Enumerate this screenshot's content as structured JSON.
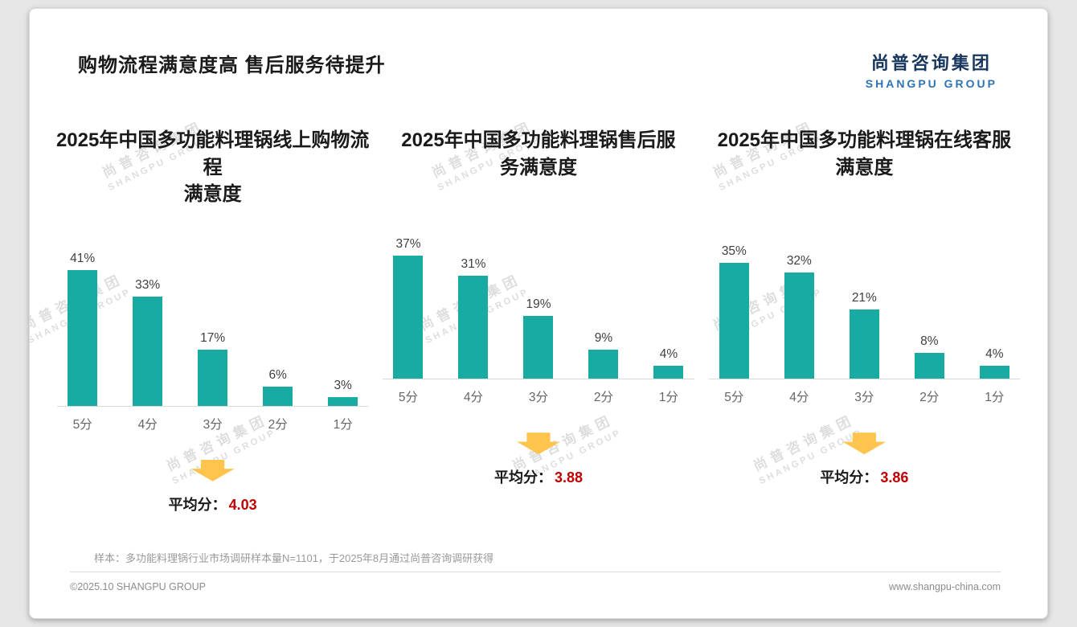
{
  "header": {
    "title": "购物流程满意度高 售后服务待提升",
    "logo_cn": "尚普咨询集团",
    "logo_en": "SHANGPU GROUP"
  },
  "watermark": {
    "line1": "尚普咨询集团",
    "line2": "SHANGPU GROUP"
  },
  "colors": {
    "bar": "#18ABA2",
    "average_value": "#C00000",
    "arrow": "#FFC44D",
    "logo_cn": "#17365D",
    "logo_en": "#2E74B5"
  },
  "chart_data": [
    {
      "type": "bar",
      "title": "2025年中国多功能料理锅线上购物流程\n满意度",
      "categories": [
        "5分",
        "4分",
        "3分",
        "2分",
        "1分"
      ],
      "values": [
        41,
        33,
        17,
        6,
        3
      ],
      "value_suffix": "%",
      "ylim": [
        0,
        45
      ],
      "grid": false,
      "legend": "none",
      "average_label": "平均分：",
      "average_value": "4.03"
    },
    {
      "type": "bar",
      "title": "2025年中国多功能料理锅售后服\n务满意度",
      "categories": [
        "5分",
        "4分",
        "3分",
        "2分",
        "1分"
      ],
      "values": [
        37,
        31,
        19,
        9,
        4
      ],
      "value_suffix": "%",
      "ylim": [
        0,
        45
      ],
      "grid": false,
      "legend": "none",
      "average_label": "平均分：",
      "average_value": "3.88"
    },
    {
      "type": "bar",
      "title": "2025年中国多功能料理锅在线客服\n满意度",
      "categories": [
        "5分",
        "4分",
        "3分",
        "2分",
        "1分"
      ],
      "values": [
        35,
        32,
        21,
        8,
        4
      ],
      "value_suffix": "%",
      "ylim": [
        0,
        45
      ],
      "grid": false,
      "legend": "none",
      "average_label": "平均分：",
      "average_value": "3.86"
    }
  ],
  "footnote": {
    "text": "样本：多功能料理锅行业市场调研样本量N=1101，于2025年8月通过尚普咨询调研获得"
  },
  "footer": {
    "copyright": "©2025.10 SHANGPU GROUP",
    "website": "www.shangpu-china.com"
  }
}
